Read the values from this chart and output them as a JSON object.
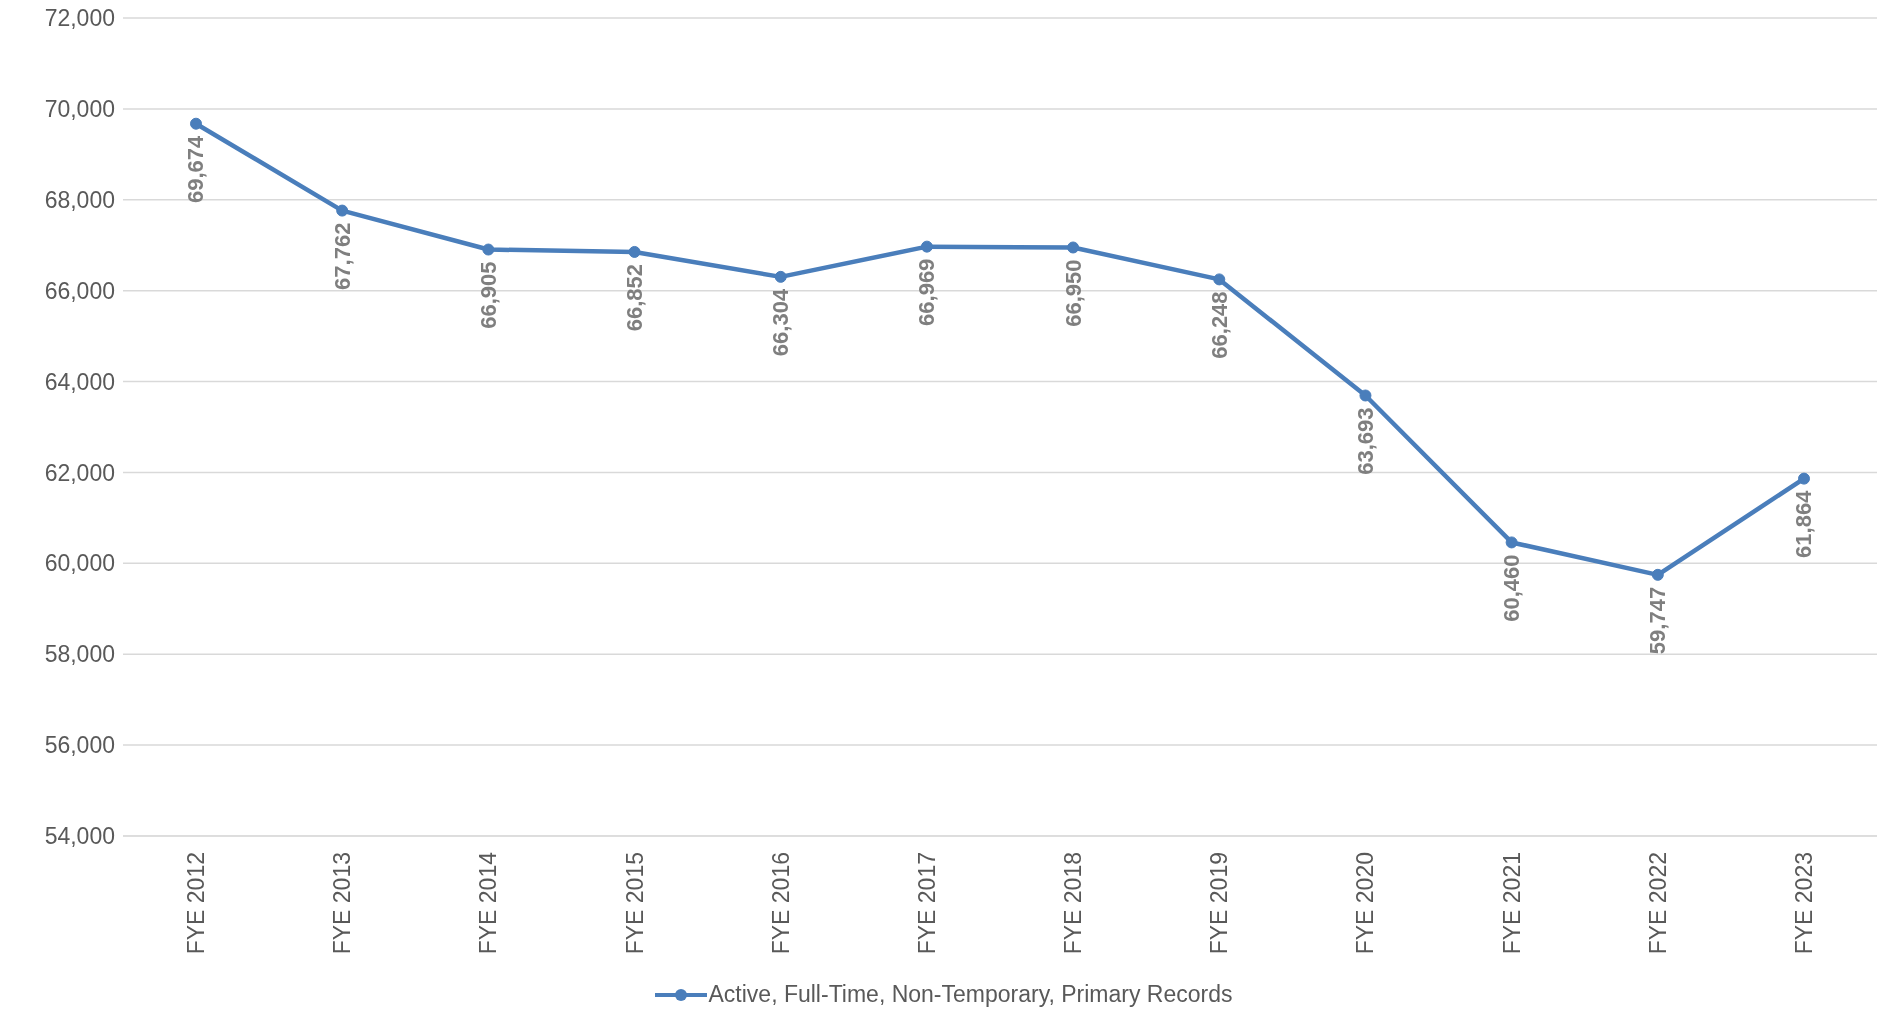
{
  "chart_data": {
    "type": "line",
    "categories": [
      "FYE 2012",
      "FYE 2013",
      "FYE 2014",
      "FYE 2015",
      "FYE 2016",
      "FYE 2017",
      "FYE 2018",
      "FYE 2019",
      "FYE 2020",
      "FYE 2021",
      "FYE 2022",
      "FYE 2023"
    ],
    "series": [
      {
        "name": "Active, Full-Time, Non-Temporary, Primary Records",
        "color": "#4a7ebb",
        "values": [
          69674,
          67762,
          66905,
          66852,
          66304,
          66969,
          66950,
          66248,
          63693,
          60460,
          59747,
          61864
        ],
        "value_labels": [
          "69,674",
          "67,762",
          "66,905",
          "66,852",
          "66,304",
          "66,969",
          "66,950",
          "66,248",
          "63,693",
          "60,460",
          "59,747",
          "61,864"
        ]
      }
    ],
    "ylim": [
      54000,
      72000
    ],
    "yticks": [
      {
        "value": 54000,
        "label": "54,000"
      },
      {
        "value": 56000,
        "label": "56,000"
      },
      {
        "value": 58000,
        "label": "58,000"
      },
      {
        "value": 60000,
        "label": "60,000"
      },
      {
        "value": 62000,
        "label": "62,000"
      },
      {
        "value": 64000,
        "label": "64,000"
      },
      {
        "value": 66000,
        "label": "66,000"
      },
      {
        "value": 68000,
        "label": "68,000"
      },
      {
        "value": 70000,
        "label": "70,000"
      },
      {
        "value": 72000,
        "label": "72,000"
      }
    ],
    "grid": "y",
    "legend": "bottom",
    "marker": "circle",
    "line_style": "solid"
  }
}
